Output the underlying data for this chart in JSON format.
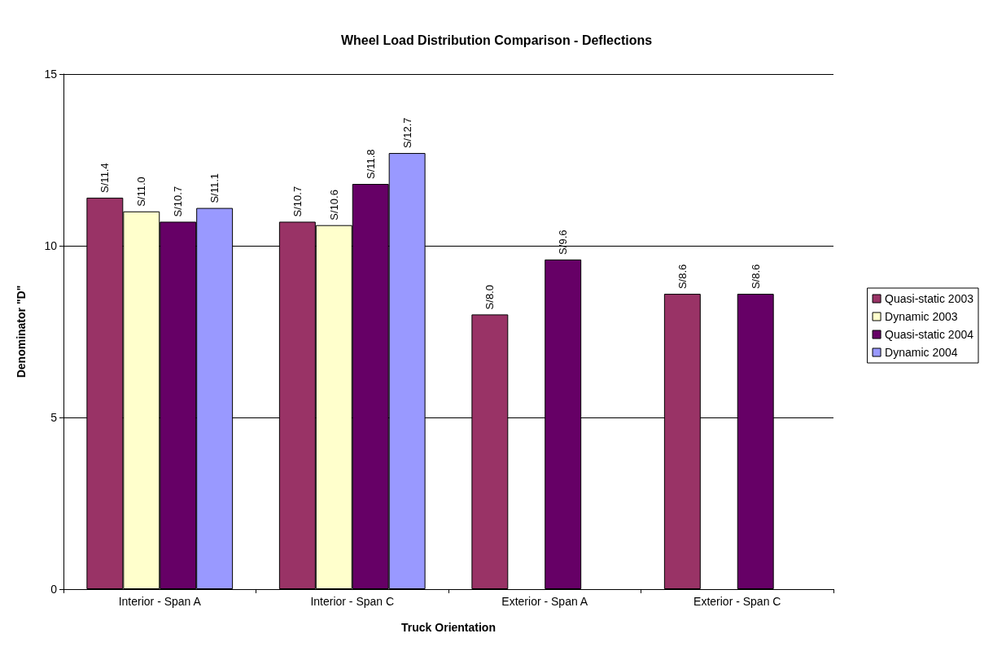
{
  "chart_data": {
    "type": "bar",
    "title": "Wheel Load Distribution Comparison - Deflections",
    "xlabel": "Truck Orientation",
    "ylabel": "Denominator \"D\"",
    "categories": [
      "Interior - Span A",
      "Interior - Span C",
      "Exterior - Span A",
      "Exterior - Span C"
    ],
    "series": [
      {
        "name": "Quasi-static 2003",
        "color": "#993366",
        "values": [
          11.4,
          10.7,
          8.0,
          8.6
        ],
        "value_labels": [
          "S/11.4",
          "S/10.7",
          "S/8.0",
          "S/8.6"
        ]
      },
      {
        "name": "Dynamic 2003",
        "color": "#ffffcc",
        "values": [
          11.0,
          10.6,
          null,
          null
        ],
        "value_labels": [
          "S/11.0",
          "S/10.6",
          null,
          null
        ]
      },
      {
        "name": "Quasi-static 2004",
        "color": "#660066",
        "values": [
          10.7,
          11.8,
          9.6,
          8.6
        ],
        "value_labels": [
          "S/10.7",
          "S/11.8",
          "S/9.6",
          "S/8.6"
        ]
      },
      {
        "name": "Dynamic 2004",
        "color": "#9999ff",
        "values": [
          11.1,
          12.7,
          null,
          null
        ],
        "value_labels": [
          "S/11.1",
          "S/12.7",
          null,
          null
        ]
      }
    ],
    "ylim": [
      0,
      15
    ],
    "yticks": [
      0,
      5,
      10,
      15
    ],
    "grid": "y",
    "legend": "right"
  }
}
